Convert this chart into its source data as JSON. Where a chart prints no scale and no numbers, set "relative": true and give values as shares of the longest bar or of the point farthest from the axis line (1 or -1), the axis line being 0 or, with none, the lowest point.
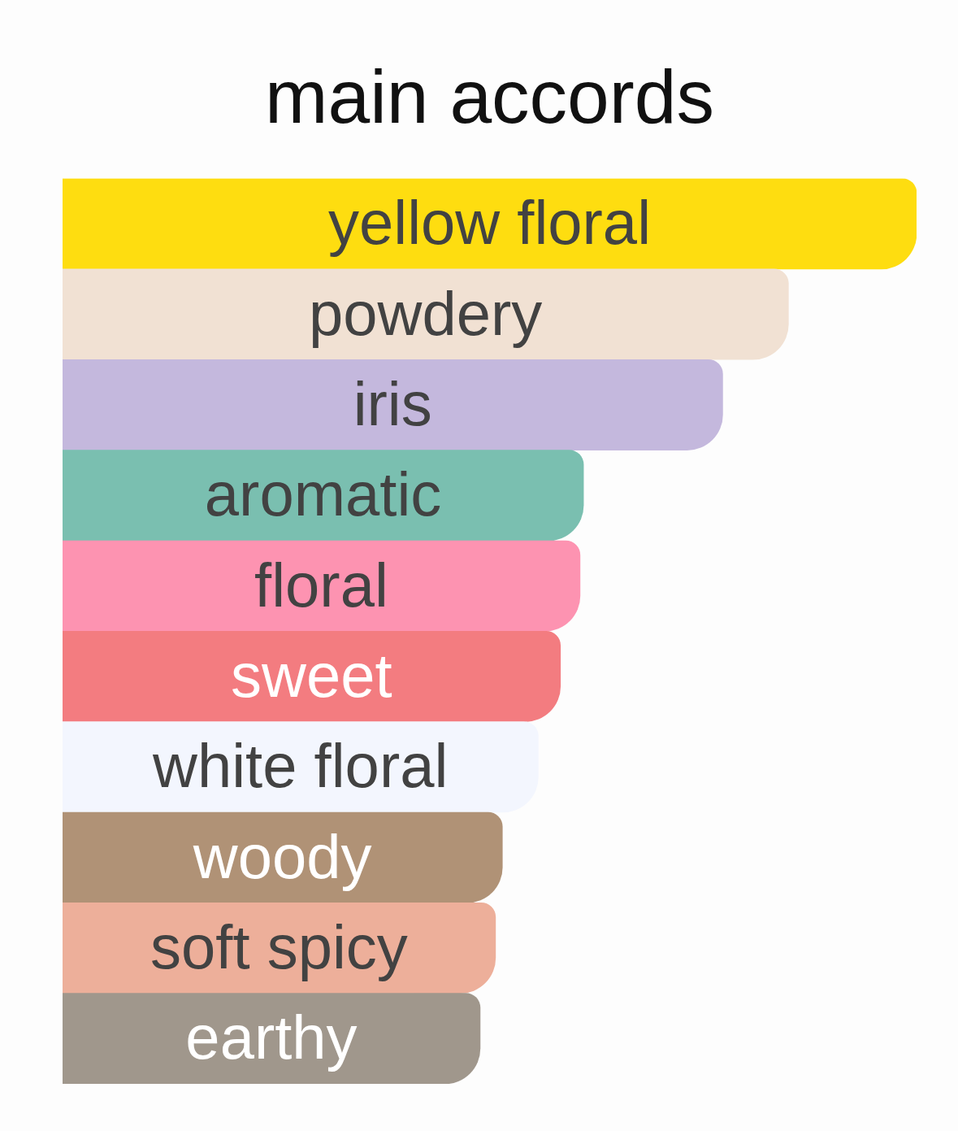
{
  "chart_data": {
    "type": "bar",
    "orientation": "horizontal",
    "relative": true,
    "title": "main accords",
    "categories": [
      "yellow floral",
      "powdery",
      "iris",
      "aromatic",
      "floral",
      "sweet",
      "white floral",
      "woody",
      "soft spicy",
      "earthy"
    ],
    "values": [
      1,
      0.85,
      0.773,
      0.61,
      0.606,
      0.583,
      0.557,
      0.515,
      0.507,
      0.489
    ],
    "colors": [
      "#fedd10",
      "#f1e1d3",
      "#c4b8dd",
      "#7abfb0",
      "#fd93b1",
      "#f37c80",
      "#f3f6fe",
      "#b09276",
      "#edaf9a",
      "#a0978c"
    ]
  }
}
